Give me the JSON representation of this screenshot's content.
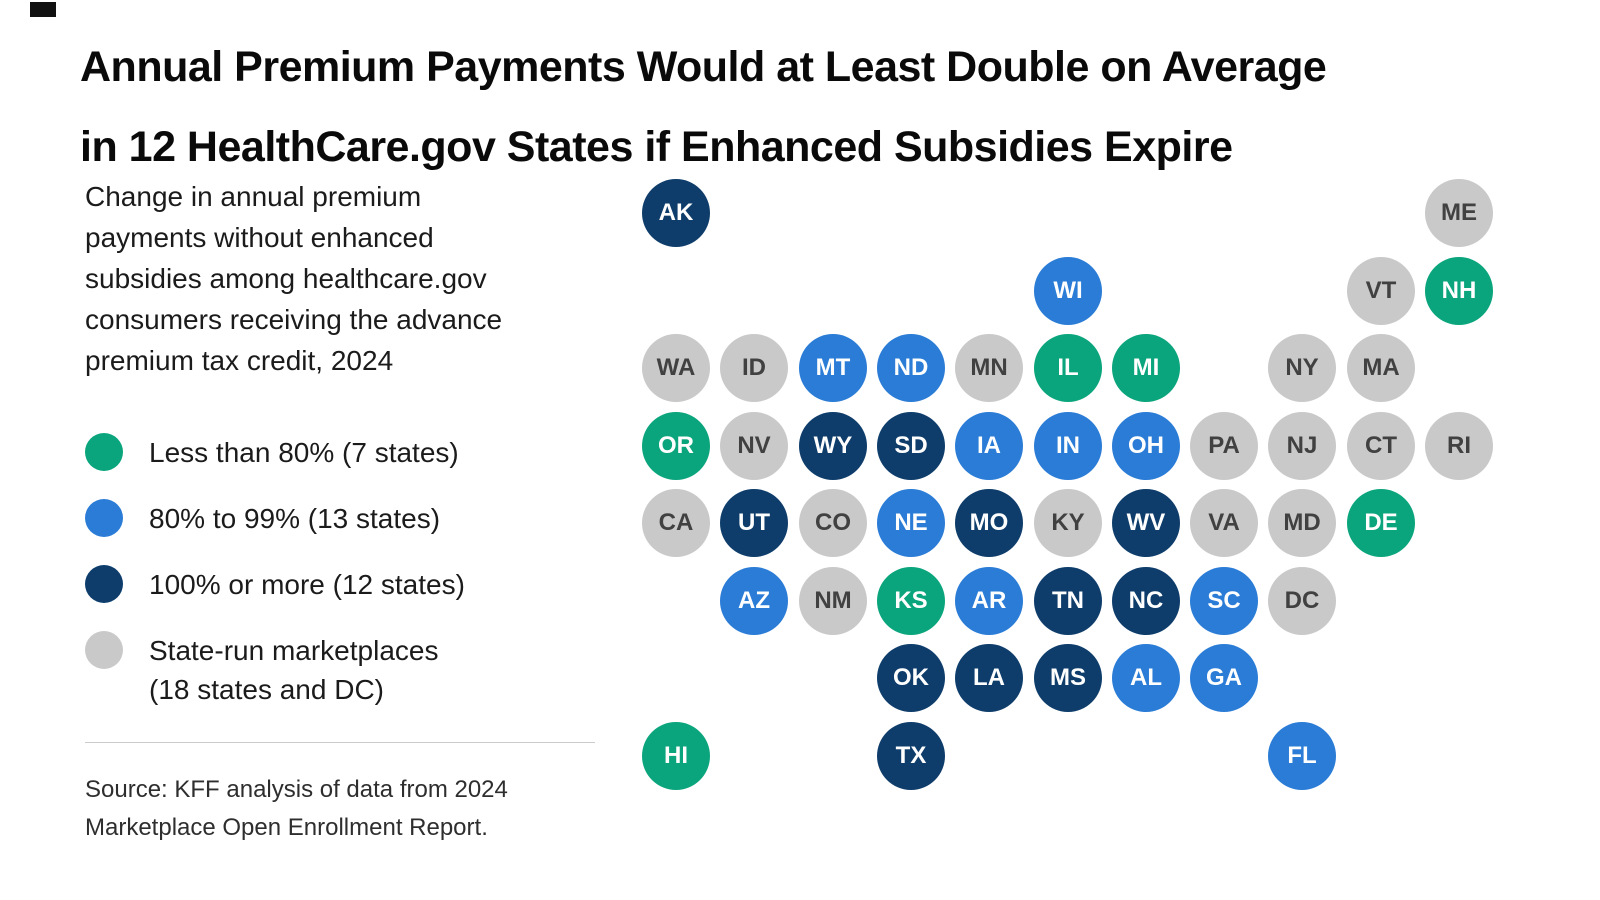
{
  "page": {
    "title_line1": "Annual Premium Payments Would at Least Double on Average",
    "title_line2": "in 12 HealthCare.gov States if Enhanced Subsidies Expire",
    "description": "Change in annual premium\npayments without enhanced\nsubsidies among healthcare.gov\nconsumers receiving the advance\npremium tax credit, 2024",
    "source": "Source: KFF analysis of data from 2024\nMarketplace Open Enrollment Report."
  },
  "colors": {
    "green": "#0aa57c",
    "blue": "#2a7cd6",
    "navy": "#0e3d6b",
    "gray": "#c9c9c9",
    "tile_text_light": "#ffffff",
    "tile_text_dark": "#414141"
  },
  "legend": [
    {
      "key": "green",
      "label": "Less than 80% (7 states)"
    },
    {
      "key": "blue",
      "label": "80% to 99% (13 states)"
    },
    {
      "key": "navy",
      "label": "100% or more (12 states)"
    },
    {
      "key": "gray",
      "label": "State-run marketplaces\n(18 states and DC)"
    }
  ],
  "chart_data": {
    "type": "heatmap",
    "title": "Annual Premium Payments Would at Least Double on Average in 12 HealthCare.gov States if Enhanced Subsidies Expire",
    "subtitle": "Change in annual premium payments without enhanced subsidies among healthcare.gov consumers receiving the advance premium tax credit, 2024",
    "legend_position": "left",
    "categories": [
      "Less than 80% (7 states)",
      "80% to 99% (13 states)",
      "100% or more (12 states)",
      "State-run marketplaces (18 states and DC)"
    ],
    "series": [
      {
        "name": "Less than 80% (7 states)",
        "states": [
          "NH",
          "IL",
          "MI",
          "OR",
          "DE",
          "KS",
          "HI"
        ]
      },
      {
        "name": "80% to 99% (13 states)",
        "states": [
          "WI",
          "MT",
          "ND",
          "IA",
          "IN",
          "OH",
          "NE",
          "AZ",
          "AR",
          "SC",
          "AL",
          "GA",
          "FL"
        ]
      },
      {
        "name": "100% or more (12 states)",
        "states": [
          "AK",
          "WY",
          "SD",
          "UT",
          "MO",
          "WV",
          "TN",
          "NC",
          "OK",
          "LA",
          "MS",
          "TX"
        ]
      },
      {
        "name": "State-run marketplaces (18 states and DC)",
        "states": [
          "ME",
          "VT",
          "WA",
          "ID",
          "MN",
          "NY",
          "MA",
          "NV",
          "PA",
          "NJ",
          "CT",
          "RI",
          "CA",
          "CO",
          "KY",
          "VA",
          "MD",
          "NM",
          "DC"
        ]
      }
    ],
    "source": "Source: KFF analysis of data from 2024 Marketplace Open Enrollment Report."
  },
  "map": {
    "tiles": [
      {
        "state": "AK",
        "col": 0,
        "row": 0,
        "cat": "navy"
      },
      {
        "state": "ME",
        "col": 10,
        "row": 0,
        "cat": "gray"
      },
      {
        "state": "WI",
        "col": 5,
        "row": 1,
        "cat": "blue"
      },
      {
        "state": "VT",
        "col": 9,
        "row": 1,
        "cat": "gray"
      },
      {
        "state": "NH",
        "col": 10,
        "row": 1,
        "cat": "green"
      },
      {
        "state": "WA",
        "col": 0,
        "row": 2,
        "cat": "gray"
      },
      {
        "state": "ID",
        "col": 1,
        "row": 2,
        "cat": "gray"
      },
      {
        "state": "MT",
        "col": 2,
        "row": 2,
        "cat": "blue"
      },
      {
        "state": "ND",
        "col": 3,
        "row": 2,
        "cat": "blue"
      },
      {
        "state": "MN",
        "col": 4,
        "row": 2,
        "cat": "gray"
      },
      {
        "state": "IL",
        "col": 5,
        "row": 2,
        "cat": "green"
      },
      {
        "state": "MI",
        "col": 6,
        "row": 2,
        "cat": "green"
      },
      {
        "state": "NY",
        "col": 8,
        "row": 2,
        "cat": "gray"
      },
      {
        "state": "MA",
        "col": 9,
        "row": 2,
        "cat": "gray"
      },
      {
        "state": "OR",
        "col": 0,
        "row": 3,
        "cat": "green"
      },
      {
        "state": "NV",
        "col": 1,
        "row": 3,
        "cat": "gray"
      },
      {
        "state": "WY",
        "col": 2,
        "row": 3,
        "cat": "navy"
      },
      {
        "state": "SD",
        "col": 3,
        "row": 3,
        "cat": "navy"
      },
      {
        "state": "IA",
        "col": 4,
        "row": 3,
        "cat": "blue"
      },
      {
        "state": "IN",
        "col": 5,
        "row": 3,
        "cat": "blue"
      },
      {
        "state": "OH",
        "col": 6,
        "row": 3,
        "cat": "blue"
      },
      {
        "state": "PA",
        "col": 7,
        "row": 3,
        "cat": "gray"
      },
      {
        "state": "NJ",
        "col": 8,
        "row": 3,
        "cat": "gray"
      },
      {
        "state": "CT",
        "col": 9,
        "row": 3,
        "cat": "gray"
      },
      {
        "state": "RI",
        "col": 10,
        "row": 3,
        "cat": "gray"
      },
      {
        "state": "CA",
        "col": 0,
        "row": 4,
        "cat": "gray"
      },
      {
        "state": "UT",
        "col": 1,
        "row": 4,
        "cat": "navy"
      },
      {
        "state": "CO",
        "col": 2,
        "row": 4,
        "cat": "gray"
      },
      {
        "state": "NE",
        "col": 3,
        "row": 4,
        "cat": "blue"
      },
      {
        "state": "MO",
        "col": 4,
        "row": 4,
        "cat": "navy"
      },
      {
        "state": "KY",
        "col": 5,
        "row": 4,
        "cat": "gray"
      },
      {
        "state": "WV",
        "col": 6,
        "row": 4,
        "cat": "navy"
      },
      {
        "state": "VA",
        "col": 7,
        "row": 4,
        "cat": "gray"
      },
      {
        "state": "MD",
        "col": 8,
        "row": 4,
        "cat": "gray"
      },
      {
        "state": "DE",
        "col": 9,
        "row": 4,
        "cat": "green"
      },
      {
        "state": "AZ",
        "col": 1,
        "row": 5,
        "cat": "blue"
      },
      {
        "state": "NM",
        "col": 2,
        "row": 5,
        "cat": "gray"
      },
      {
        "state": "KS",
        "col": 3,
        "row": 5,
        "cat": "green"
      },
      {
        "state": "AR",
        "col": 4,
        "row": 5,
        "cat": "blue"
      },
      {
        "state": "TN",
        "col": 5,
        "row": 5,
        "cat": "navy"
      },
      {
        "state": "NC",
        "col": 6,
        "row": 5,
        "cat": "navy"
      },
      {
        "state": "SC",
        "col": 7,
        "row": 5,
        "cat": "blue"
      },
      {
        "state": "DC",
        "col": 8,
        "row": 5,
        "cat": "gray"
      },
      {
        "state": "OK",
        "col": 3,
        "row": 6,
        "cat": "navy"
      },
      {
        "state": "LA",
        "col": 4,
        "row": 6,
        "cat": "navy"
      },
      {
        "state": "MS",
        "col": 5,
        "row": 6,
        "cat": "navy"
      },
      {
        "state": "AL",
        "col": 6,
        "row": 6,
        "cat": "blue"
      },
      {
        "state": "GA",
        "col": 7,
        "row": 6,
        "cat": "blue"
      },
      {
        "state": "HI",
        "col": 0,
        "row": 7,
        "cat": "green"
      },
      {
        "state": "TX",
        "col": 3,
        "row": 7,
        "cat": "navy"
      },
      {
        "state": "FL",
        "col": 8,
        "row": 7,
        "cat": "blue"
      }
    ]
  }
}
